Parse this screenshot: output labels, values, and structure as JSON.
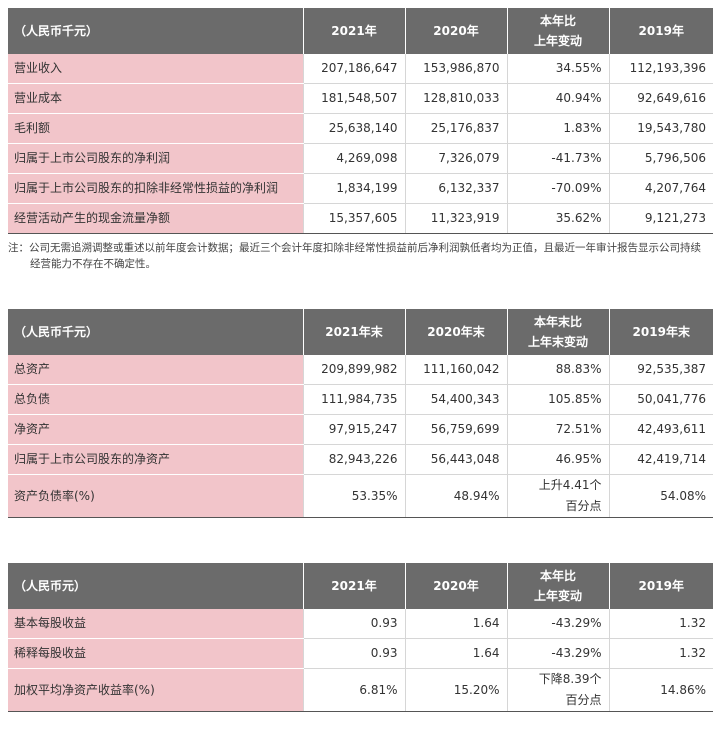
{
  "tables": [
    {
      "header": [
        "（人民币千元）",
        "2021年",
        "2020年",
        "本年比\n上年变动",
        "2019年"
      ],
      "rows": [
        [
          "营业收入",
          "207,186,647",
          "153,986,870",
          "34.55%",
          "112,193,396"
        ],
        [
          "营业成本",
          "181,548,507",
          "128,810,033",
          "40.94%",
          "92,649,616"
        ],
        [
          "毛利额",
          "25,638,140",
          "25,176,837",
          "1.83%",
          "19,543,780"
        ],
        [
          "归属于上市公司股东的净利润",
          "4,269,098",
          "7,326,079",
          "-41.73%",
          "5,796,506"
        ],
        [
          "归属于上市公司股东的扣除非经常性损益的净利润",
          "1,834,199",
          "6,132,337",
          "-70.09%",
          "4,207,764"
        ],
        [
          "经营活动产生的现金流量净额",
          "15,357,605",
          "11,323,919",
          "35.62%",
          "9,121,273"
        ]
      ]
    },
    {
      "header": [
        "（人民币千元）",
        "2021年末",
        "2020年末",
        "本年末比\n上年末变动",
        "2019年末"
      ],
      "rows": [
        [
          "总资产",
          "209,899,982",
          "111,160,042",
          "88.83%",
          "92,535,387"
        ],
        [
          "总负债",
          "111,984,735",
          "54,400,343",
          "105.85%",
          "50,041,776"
        ],
        [
          "净资产",
          "97,915,247",
          "56,759,699",
          "72.51%",
          "42,493,611"
        ],
        [
          "归属于上市公司股东的净资产",
          "82,943,226",
          "56,443,048",
          "46.95%",
          "42,419,714"
        ],
        [
          "资产负债率(%)",
          "53.35%",
          "48.94%",
          "上升4.41个\n百分点",
          "54.08%"
        ]
      ]
    },
    {
      "header": [
        "（人民币元）",
        "2021年",
        "2020年",
        "本年比\n上年变动",
        "2019年"
      ],
      "rows": [
        [
          "基本每股收益",
          "0.93",
          "1.64",
          "-43.29%",
          "1.32"
        ],
        [
          "稀释每股收益",
          "0.93",
          "1.64",
          "-43.29%",
          "1.32"
        ],
        [
          "加权平均净资产收益率(%)",
          "6.81%",
          "15.20%",
          "下降8.39个\n百分点",
          "14.86%"
        ]
      ]
    }
  ],
  "note": "注：公司无需追溯调整或重述以前年度会计数据；最近三个会计年度扣除非经常性损益前后净利润孰低者均为正值，且最近一年审计报告显示公司持续经营能力不存在不确定性。"
}
